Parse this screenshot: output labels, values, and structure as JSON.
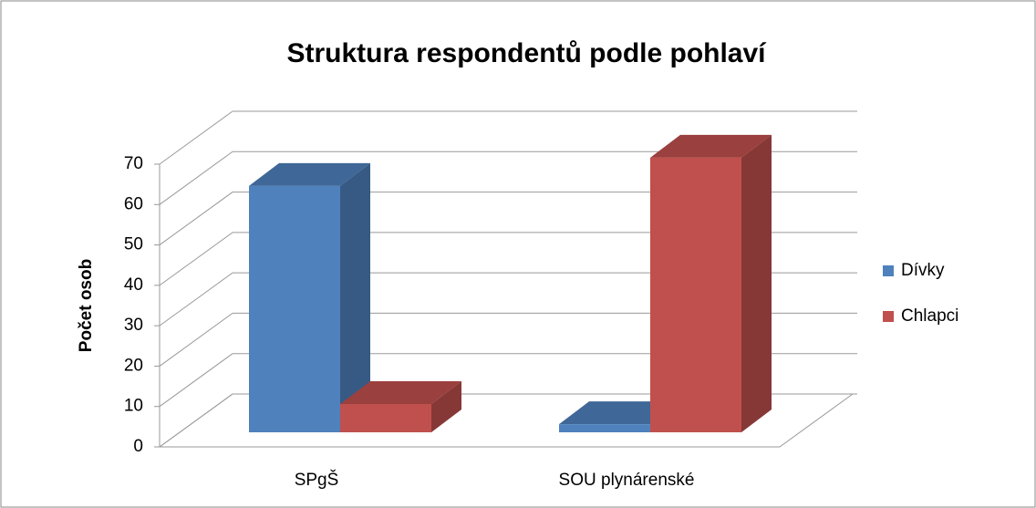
{
  "chart_data": {
    "type": "bar3d",
    "title": "Struktura respondentů podle pohlaví",
    "y_label": "Počet osob",
    "categories": [
      "SPgŠ",
      "SOU plynárenské"
    ],
    "series": [
      {
        "name": "Dívky",
        "color": "#4f81bd",
        "values": [
          61,
          2
        ]
      },
      {
        "name": "Chlapci",
        "color": "#c0504d",
        "values": [
          7,
          68
        ]
      }
    ],
    "ylim": [
      0,
      70
    ],
    "yticks": [
      0,
      10,
      20,
      30,
      40,
      50,
      60,
      70
    ],
    "grid": true,
    "legend": "right"
  }
}
